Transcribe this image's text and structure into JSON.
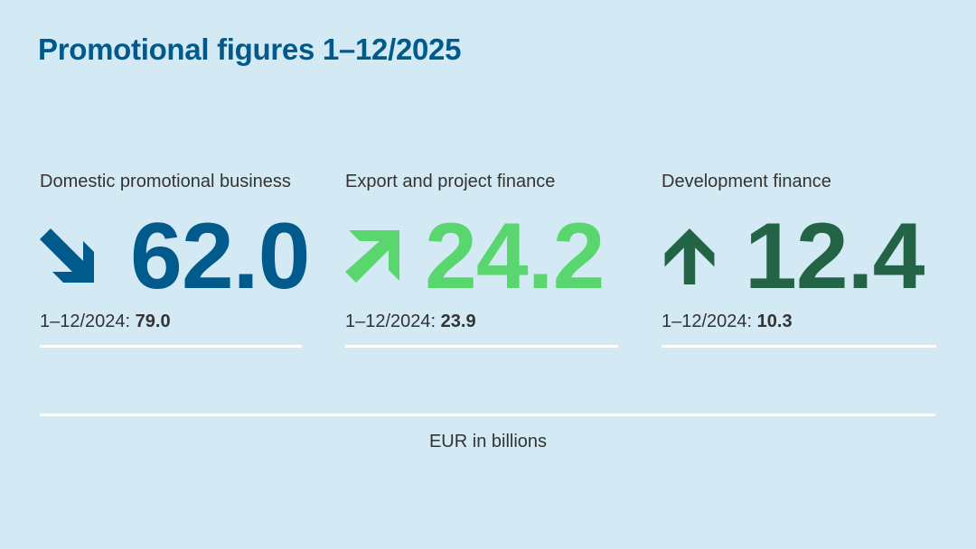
{
  "title": "Promotional figures 1–12/2025",
  "colors": {
    "background": "#d3eaf5",
    "decrease": "#005a8c",
    "increase": "#5ad66e",
    "strong_increase": "#236446",
    "text": "#333333"
  },
  "metrics": [
    {
      "label": "Domestic promotional business",
      "value": "62.0",
      "icon": "arrow-down-right-icon",
      "prev_label": "1–12/2024:",
      "prev_value": "79.0"
    },
    {
      "label": "Export and project finance",
      "value": "24.2",
      "icon": "arrow-up-right-icon",
      "prev_label": "1–12/2024:",
      "prev_value": "23.9"
    },
    {
      "label": "Development finance",
      "value": "12.4",
      "icon": "arrow-up-icon",
      "prev_label": "1–12/2024:",
      "prev_value": "10.3"
    }
  ],
  "unit": "EUR in billions"
}
